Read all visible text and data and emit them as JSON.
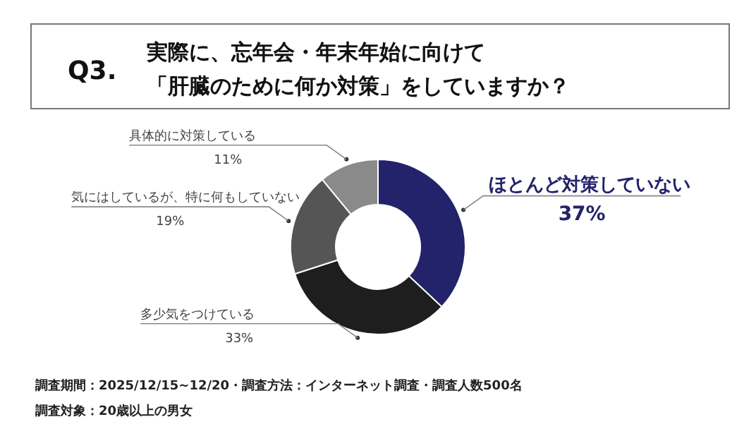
{
  "chart_data": {
    "type": "donut",
    "title": "Q3.",
    "subtitle": "実際に、忘年会・年末年始に向けて「肝臓のために何か対策」をしていますか？",
    "categories": [
      "ほとんど対策していない",
      "多少気をつけている",
      "気にはしているが、特に何もしていない",
      "具体的に対策している"
    ],
    "values": [
      37,
      33,
      19,
      11
    ],
    "colors": [
      "#23236b",
      "#1e1e1e",
      "#555555",
      "#8a8a8a"
    ],
    "value_labels": [
      "37%",
      "33%",
      "19%",
      "11%"
    ],
    "annotations": [
      "調査期間：2025/12/15~12/20・調査方法：インターネット調査・調査人数500名",
      "調査対象：20歳以上の男女"
    ]
  }
}
